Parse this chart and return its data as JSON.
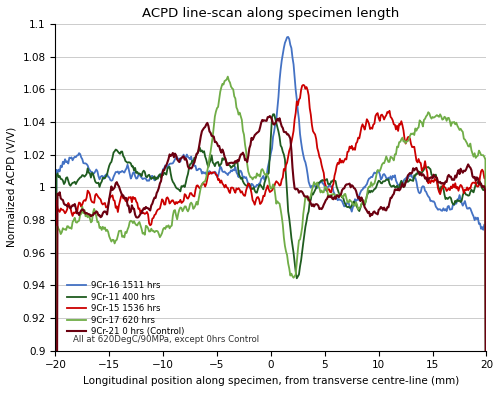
{
  "title": "ACPD line-scan along specimen length",
  "xlabel": "Longitudinal position along specimen, from transverse centre-line (mm)",
  "ylabel": "Normalized ACPD (V/V)",
  "xlim": [
    -20,
    20
  ],
  "ylim": [
    0.9,
    1.1
  ],
  "yticks": [
    0.9,
    0.92,
    0.94,
    0.96,
    0.98,
    1.0,
    1.02,
    1.04,
    1.06,
    1.08,
    1.1
  ],
  "xticks": [
    -20,
    -15,
    -10,
    -5,
    0,
    5,
    10,
    15,
    20
  ],
  "annotation": "All at 620DegC/90MPa, except 0hrs Control",
  "series": [
    {
      "label": "9Cr-16 1511 hrs",
      "color": "#4472C4",
      "lw": 1.3
    },
    {
      "label": "9Cr-11 400 hrs",
      "color": "#1F5C1F",
      "lw": 1.3
    },
    {
      "label": "9Cr-15 1536 hrs",
      "color": "#CC0000",
      "lw": 1.3
    },
    {
      "label": "9Cr-17 620 hrs",
      "color": "#70AD47",
      "lw": 1.3
    },
    {
      "label": "9Cr-21 0 hrs (Control)",
      "color": "#6B0010",
      "lw": 1.5
    }
  ],
  "background_color": "#FFFFFF",
  "grid_color": "#CCCCCC"
}
